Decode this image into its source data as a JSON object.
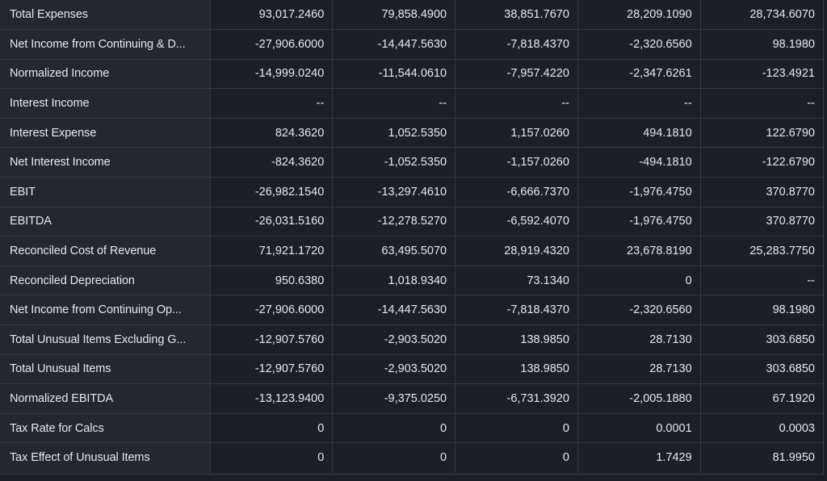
{
  "financials": {
    "rows": [
      {
        "label": "Total Expenses",
        "values": [
          "93,017.2460",
          "79,858.4900",
          "38,851.7670",
          "28,209.1090",
          "28,734.6070"
        ]
      },
      {
        "label": "Net Income from Continuing & D...",
        "values": [
          "-27,906.6000",
          "-14,447.5630",
          "-7,818.4370",
          "-2,320.6560",
          "98.1980"
        ]
      },
      {
        "label": "Normalized Income",
        "values": [
          "-14,999.0240",
          "-11,544.0610",
          "-7,957.4220",
          "-2,347.6261",
          "-123.4921"
        ]
      },
      {
        "label": "Interest Income",
        "values": [
          "--",
          "--",
          "--",
          "--",
          "--"
        ]
      },
      {
        "label": "Interest Expense",
        "values": [
          "824.3620",
          "1,052.5350",
          "1,157.0260",
          "494.1810",
          "122.6790"
        ]
      },
      {
        "label": "Net Interest Income",
        "values": [
          "-824.3620",
          "-1,052.5350",
          "-1,157.0260",
          "-494.1810",
          "-122.6790"
        ]
      },
      {
        "label": "EBIT",
        "values": [
          "-26,982.1540",
          "-13,297.4610",
          "-6,666.7370",
          "-1,976.4750",
          "370.8770"
        ]
      },
      {
        "label": "EBITDA",
        "values": [
          "-26,031.5160",
          "-12,278.5270",
          "-6,592.4070",
          "-1,976.4750",
          "370.8770"
        ]
      },
      {
        "label": "Reconciled Cost of Revenue",
        "values": [
          "71,921.1720",
          "63,495.5070",
          "28,919.4320",
          "23,678.8190",
          "25,283.7750"
        ]
      },
      {
        "label": "Reconciled Depreciation",
        "values": [
          "950.6380",
          "1,018.9340",
          "73.1340",
          "0",
          "--"
        ]
      },
      {
        "label": "Net Income from Continuing Op...",
        "values": [
          "-27,906.6000",
          "-14,447.5630",
          "-7,818.4370",
          "-2,320.6560",
          "98.1980"
        ]
      },
      {
        "label": "Total Unusual Items Excluding G...",
        "values": [
          "-12,907.5760",
          "-2,903.5020",
          "138.9850",
          "28.7130",
          "303.6850"
        ]
      },
      {
        "label": "Total Unusual Items",
        "values": [
          "-12,907.5760",
          "-2,903.5020",
          "138.9850",
          "28.7130",
          "303.6850"
        ]
      },
      {
        "label": "Normalized EBITDA",
        "values": [
          "-13,123.9400",
          "-9,375.0250",
          "-6,731.3920",
          "-2,005.1880",
          "67.1920"
        ]
      },
      {
        "label": "Tax Rate for Calcs",
        "values": [
          "0",
          "0",
          "0",
          "0.0001",
          "0.0003"
        ]
      },
      {
        "label": "Tax Effect of Unusual Items",
        "values": [
          "0",
          "0",
          "0",
          "1.7429",
          "81.9950"
        ]
      }
    ]
  },
  "colors": {
    "background": "#1b1e24",
    "label_cell": "#24272d",
    "value_cell": "#1c1f25",
    "grid": "#34383f",
    "text": "#e6e8ea"
  }
}
